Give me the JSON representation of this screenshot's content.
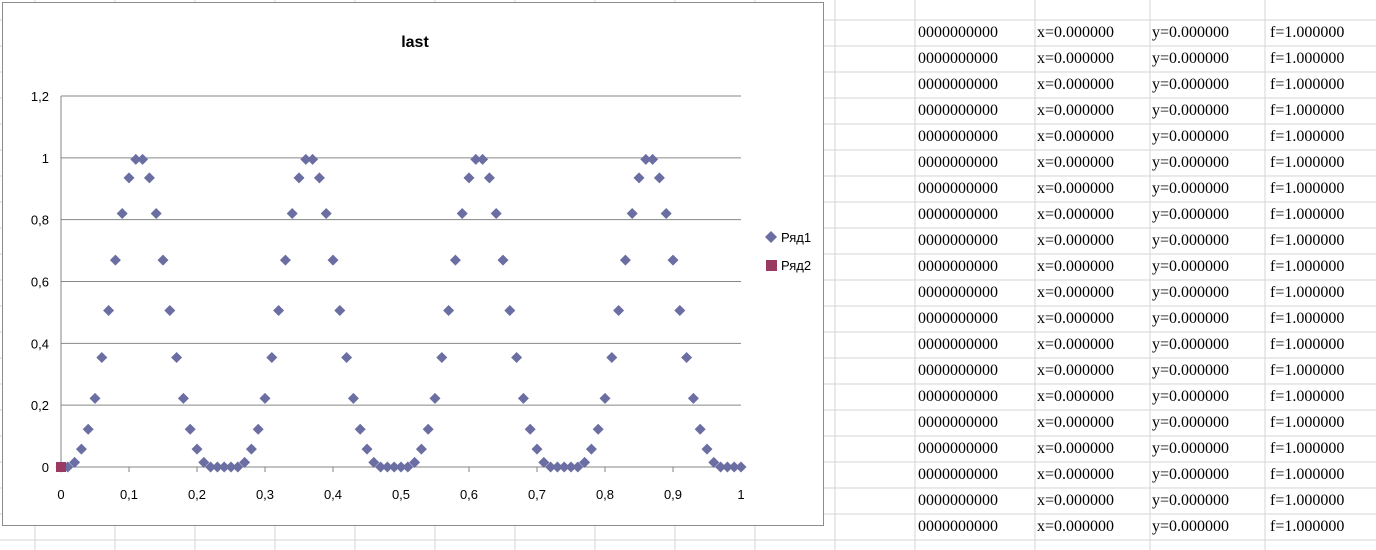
{
  "colors": {
    "series1": "#6b6ea2",
    "series2": "#9a3a63",
    "gridline": "#868686",
    "cell_border": "#d4d4d4"
  },
  "chart_data": {
    "type": "scatter",
    "title": "last",
    "xlabel": "",
    "ylabel": "",
    "xlim": [
      0,
      1
    ],
    "ylim": [
      0,
      1.2
    ],
    "x_ticks": [
      "0",
      "0,1",
      "0,2",
      "0,3",
      "0,4",
      "0,5",
      "0,6",
      "0,7",
      "0,8",
      "0,9",
      "1"
    ],
    "y_ticks": [
      "0",
      "0,2",
      "0,4",
      "0,6",
      "0,8",
      "1",
      "1,2"
    ],
    "grid": "horizontal",
    "legend_position": "right",
    "series": [
      {
        "name": "Ряд1",
        "marker": "diamond",
        "x": [
          0,
          0.01,
          0.02,
          0.03,
          0.04,
          0.05,
          0.06,
          0.07,
          0.08,
          0.09,
          0.1,
          0.11,
          0.12,
          0.13,
          0.14,
          0.15,
          0.16,
          0.17,
          0.18,
          0.19,
          0.2,
          0.21,
          0.22,
          0.23,
          0.24,
          0.25,
          0.26,
          0.27,
          0.28,
          0.29,
          0.3,
          0.31,
          0.32,
          0.33,
          0.34,
          0.35,
          0.36,
          0.37,
          0.38,
          0.39,
          0.4,
          0.41,
          0.42,
          0.43,
          0.44,
          0.45,
          0.46,
          0.47,
          0.48,
          0.49,
          0.5,
          0.51,
          0.52,
          0.53,
          0.54,
          0.55,
          0.56,
          0.57,
          0.58,
          0.59,
          0.6,
          0.61,
          0.62,
          0.63,
          0.64,
          0.65,
          0.66,
          0.67,
          0.68,
          0.69,
          0.7,
          0.71,
          0.72,
          0.73,
          0.74,
          0.75,
          0.76,
          0.77,
          0.78,
          0.79,
          0.8,
          0.81,
          0.82,
          0.83,
          0.84,
          0.85,
          0.86,
          0.87,
          0.88,
          0.89,
          0.9,
          0.91,
          0.92,
          0.93,
          0.94,
          0.95,
          0.96,
          0.97,
          0.98,
          0.99,
          1
        ],
        "y": [
          0,
          0,
          0.015,
          0.058,
          0.122,
          0.222,
          0.354,
          0.506,
          0.669,
          0.82,
          0.935,
          0.995,
          0.995,
          0.935,
          0.82,
          0.669,
          0.506,
          0.354,
          0.222,
          0.122,
          0.058,
          0.015,
          0,
          0,
          0,
          0,
          0,
          0.015,
          0.058,
          0.122,
          0.222,
          0.354,
          0.506,
          0.669,
          0.82,
          0.935,
          0.995,
          0.995,
          0.935,
          0.82,
          0.669,
          0.506,
          0.354,
          0.222,
          0.122,
          0.058,
          0.015,
          0,
          0,
          0,
          0,
          0,
          0.015,
          0.058,
          0.122,
          0.222,
          0.354,
          0.506,
          0.669,
          0.82,
          0.935,
          0.995,
          0.995,
          0.935,
          0.82,
          0.669,
          0.506,
          0.354,
          0.222,
          0.122,
          0.058,
          0.015,
          0,
          0,
          0,
          0,
          0,
          0.015,
          0.058,
          0.122,
          0.222,
          0.354,
          0.506,
          0.669,
          0.82,
          0.935,
          0.995,
          0.995,
          0.935,
          0.82,
          0.669,
          0.506,
          0.354,
          0.222,
          0.122,
          0.058,
          0.015,
          0,
          0,
          0,
          0
        ]
      },
      {
        "name": "Ряд2",
        "marker": "square",
        "x": [
          0
        ],
        "y": [
          0
        ]
      }
    ]
  },
  "sheet": {
    "rows": [
      [
        "0000000000",
        "x=0.000000",
        "y=0.000000",
        "f=1.000000"
      ],
      [
        "0000000000",
        "x=0.000000",
        "y=0.000000",
        "f=1.000000"
      ],
      [
        "0000000000",
        "x=0.000000",
        "y=0.000000",
        "f=1.000000"
      ],
      [
        "0000000000",
        "x=0.000000",
        "y=0.000000",
        "f=1.000000"
      ],
      [
        "0000000000",
        "x=0.000000",
        "y=0.000000",
        "f=1.000000"
      ],
      [
        "0000000000",
        "x=0.000000",
        "y=0.000000",
        "f=1.000000"
      ],
      [
        "0000000000",
        "x=0.000000",
        "y=0.000000",
        "f=1.000000"
      ],
      [
        "0000000000",
        "x=0.000000",
        "y=0.000000",
        "f=1.000000"
      ],
      [
        "0000000000",
        "x=0.000000",
        "y=0.000000",
        "f=1.000000"
      ],
      [
        "0000000000",
        "x=0.000000",
        "y=0.000000",
        "f=1.000000"
      ],
      [
        "0000000000",
        "x=0.000000",
        "y=0.000000",
        "f=1.000000"
      ],
      [
        "0000000000",
        "x=0.000000",
        "y=0.000000",
        "f=1.000000"
      ],
      [
        "0000000000",
        "x=0.000000",
        "y=0.000000",
        "f=1.000000"
      ],
      [
        "0000000000",
        "x=0.000000",
        "y=0.000000",
        "f=1.000000"
      ],
      [
        "0000000000",
        "x=0.000000",
        "y=0.000000",
        "f=1.000000"
      ],
      [
        "0000000000",
        "x=0.000000",
        "y=0.000000",
        "f=1.000000"
      ],
      [
        "0000000000",
        "x=0.000000",
        "y=0.000000",
        "f=1.000000"
      ],
      [
        "0000000000",
        "x=0.000000",
        "y=0.000000",
        "f=1.000000"
      ],
      [
        "0000000000",
        "x=0.000000",
        "y=0.000000",
        "f=1.000000"
      ],
      [
        "0000000000",
        "x=0.000000",
        "y=0.000000",
        "f=1.000000"
      ]
    ]
  }
}
